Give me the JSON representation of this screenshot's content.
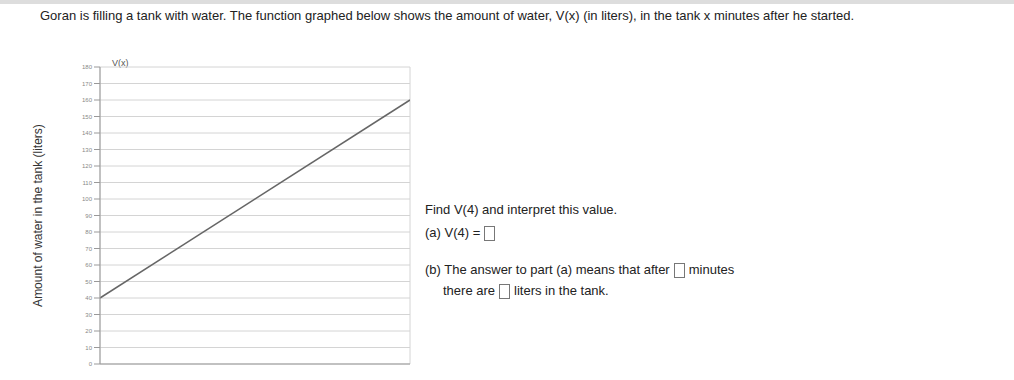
{
  "text": {
    "problem": "Goran is filling a tank with water. The function graphed below shows the amount of water, V(x) (in liters), in the tank x minutes after he started.",
    "prompt": "Find V(4) and interpret this value.",
    "part_a": "(a) V(4) =",
    "part_b_1": "(b) The answer to part (a) means that after",
    "part_b_2": "minutes",
    "part_b_3": "there are",
    "part_b_4": "liters in the tank."
  },
  "chart_data": {
    "type": "line",
    "y_name": "V(x)",
    "y_label": "Amount of water in the tank (liters)",
    "x": [
      0,
      10
    ],
    "values": [
      40,
      160
    ],
    "color": "#666666",
    "xlim": [
      0,
      10
    ],
    "xticks": [
      0,
      1,
      2,
      3,
      4,
      5,
      6,
      7,
      8,
      9,
      10
    ],
    "ylim": [
      0,
      180
    ],
    "yticks": [
      0,
      10,
      20,
      30,
      40,
      50,
      60,
      70,
      80,
      90,
      100,
      110,
      120,
      130,
      140,
      150,
      160,
      170,
      180
    ],
    "grid": true,
    "tick_labels": "y"
  }
}
